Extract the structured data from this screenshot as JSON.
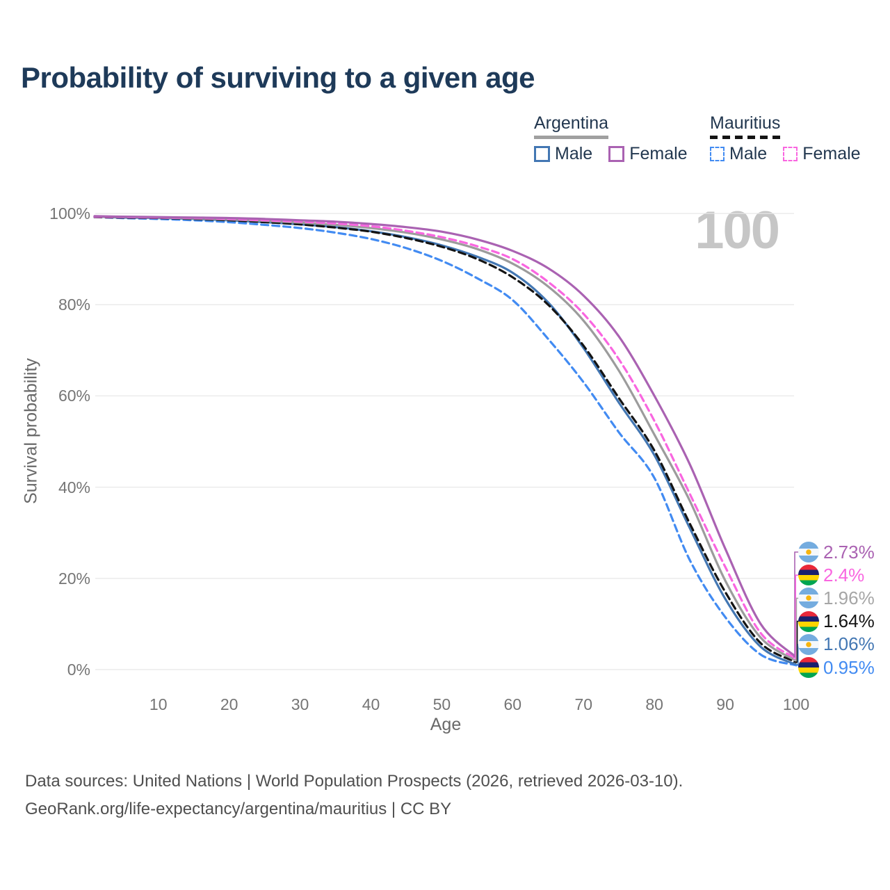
{
  "title": "Probability of surviving to a given age",
  "watermark": "100",
  "legend": {
    "groups": [
      {
        "country": "Argentina",
        "line_style": "solid",
        "line_color": "#a0a0a0",
        "items": [
          {
            "label": "Male",
            "color": "#4377b3",
            "dashed": false
          },
          {
            "label": "Female",
            "color": "#aa62b2",
            "dashed": false
          }
        ]
      },
      {
        "country": "Mauritius",
        "line_style": "dashed",
        "line_color": "#141414",
        "items": [
          {
            "label": "Male",
            "color": "#428bf2",
            "dashed": true
          },
          {
            "label": "Female",
            "color": "#f966e0",
            "dashed": true
          }
        ]
      }
    ]
  },
  "chart_data": {
    "type": "line",
    "title": "Probability of surviving to a given age",
    "xlabel": "Age",
    "ylabel": "Survival probability",
    "x_range": [
      1,
      100
    ],
    "y_range_percent": [
      0,
      100
    ],
    "grid": "horizontal",
    "legend_position": "top-right",
    "xticks": [
      10,
      20,
      30,
      40,
      50,
      60,
      70,
      80,
      90,
      100
    ],
    "yticks": [
      {
        "value": 0,
        "label": "0%"
      },
      {
        "value": 20,
        "label": "20%"
      },
      {
        "value": 40,
        "label": "40%"
      },
      {
        "value": 60,
        "label": "60%"
      },
      {
        "value": 80,
        "label": "80%"
      },
      {
        "value": 100,
        "label": "100%"
      }
    ],
    "ages": [
      1,
      5,
      10,
      15,
      20,
      25,
      30,
      35,
      40,
      45,
      50,
      55,
      60,
      65,
      70,
      75,
      80,
      85,
      90,
      95,
      100
    ],
    "series": [
      {
        "name": "Mauritius Male",
        "country": "Mauritius",
        "sex": "Male",
        "color": "#428bf2",
        "dashed": true,
        "end_value_label": "0.95%",
        "values": [
          99.2,
          99.0,
          98.8,
          98.5,
          98.1,
          97.5,
          96.8,
          95.8,
          94.4,
          92.4,
          89.6,
          85.8,
          81.0,
          72.5,
          63.0,
          52.0,
          42.0,
          24.0,
          11.5,
          3.3,
          0.95
        ]
      },
      {
        "name": "Argentina Male",
        "country": "Argentina",
        "sex": "Male",
        "color": "#4377b3",
        "dashed": false,
        "end_value_label": "1.06%",
        "values": [
          99.3,
          99.1,
          99.0,
          98.8,
          98.5,
          98.1,
          97.6,
          97.0,
          96.1,
          94.8,
          93.0,
          90.5,
          87.0,
          80.5,
          70.5,
          58.5,
          47.0,
          31.0,
          15.5,
          5.0,
          1.06
        ]
      },
      {
        "name": "Mauritius Total",
        "country": "Mauritius",
        "sex": "Total",
        "color": "#141414",
        "dashed": true,
        "end_value_label": "1.64%",
        "values": [
          99.2,
          99.1,
          99.0,
          98.8,
          98.5,
          98.1,
          97.6,
          96.9,
          96.0,
          94.6,
          92.7,
          90.0,
          86.0,
          80.0,
          71.0,
          59.5,
          48.0,
          32.0,
          17.0,
          5.8,
          1.64
        ]
      },
      {
        "name": "Argentina Total",
        "country": "Argentina",
        "sex": "Total",
        "color": "#9c9c9c",
        "dashed": false,
        "end_value_label": "1.96%",
        "values": [
          99.3,
          99.2,
          99.1,
          98.9,
          98.7,
          98.4,
          98.0,
          97.5,
          96.8,
          95.8,
          94.3,
          92.2,
          89.0,
          84.0,
          76.5,
          65.5,
          51.5,
          37.0,
          19.5,
          7.0,
          1.96
        ]
      },
      {
        "name": "Mauritius Female",
        "country": "Mauritius",
        "sex": "Female",
        "color": "#f966e0",
        "dashed": true,
        "end_value_label": "2.4%",
        "values": [
          99.3,
          99.2,
          99.1,
          99.0,
          98.8,
          98.5,
          98.2,
          97.8,
          97.2,
          96.2,
          94.8,
          92.8,
          90.0,
          85.0,
          78.0,
          68.0,
          54.5,
          38.5,
          22.5,
          8.0,
          2.4
        ]
      },
      {
        "name": "Argentina Female",
        "country": "Argentina",
        "sex": "Female",
        "color": "#aa62b2",
        "dashed": false,
        "end_value_label": "2.73%",
        "values": [
          99.4,
          99.3,
          99.2,
          99.1,
          99.0,
          98.8,
          98.5,
          98.2,
          97.7,
          97.0,
          96.0,
          94.3,
          91.8,
          88.0,
          82.0,
          73.0,
          60.0,
          45.0,
          26.5,
          10.0,
          2.73
        ]
      }
    ],
    "end_labels": [
      {
        "label": "2.73%",
        "value": 2.73,
        "flag": "argentina",
        "series": "Argentina Female",
        "color": "#aa62b2"
      },
      {
        "label": "2.4%",
        "value": 2.4,
        "flag": "mauritius",
        "series": "Mauritius Female",
        "color": "#f966e0"
      },
      {
        "label": "1.96%",
        "value": 1.96,
        "flag": "argentina",
        "series": "Argentina Total",
        "color": "#a6a6a6"
      },
      {
        "label": "1.64%",
        "value": 1.64,
        "flag": "mauritius",
        "series": "Mauritius Total",
        "color": "#141414"
      },
      {
        "label": "1.06%",
        "value": 1.06,
        "flag": "argentina",
        "series": "Argentina Male",
        "color": "#4377b3"
      },
      {
        "label": "0.95%",
        "value": 0.95,
        "flag": "mauritius",
        "series": "Mauritius Male",
        "color": "#428bf2"
      }
    ]
  },
  "footer": {
    "line1": "Data sources: United Nations | World Population Prospects (2026, retrieved 2026-03-10).",
    "line2": "GeoRank.org/life-expectancy/argentina/mauritius | CC BY"
  }
}
